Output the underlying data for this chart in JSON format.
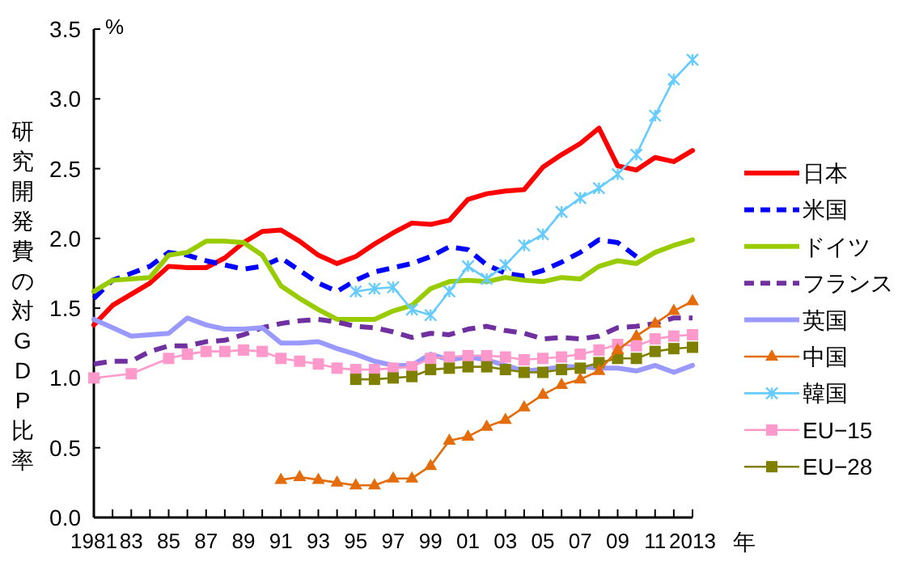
{
  "chart_data": {
    "type": "line",
    "ylabel": "研究開発費の対GDP比率",
    "xlabel": "年",
    "annotations": [
      "%"
    ],
    "xlim": [
      1981,
      2013
    ],
    "ylim": [
      0,
      3.5
    ],
    "yticks": [
      {
        "value": 0,
        "label": "0.0"
      },
      {
        "value": 0.5,
        "label": "0.5"
      },
      {
        "value": 1,
        "label": "1.0"
      },
      {
        "value": 1.5,
        "label": "1.5"
      },
      {
        "value": 2,
        "label": "2.0"
      },
      {
        "value": 2.5,
        "label": "2.5"
      },
      {
        "value": 3,
        "label": "3.0"
      },
      {
        "value": 3.5,
        "label": "3.5"
      }
    ],
    "xticks": [
      {
        "value": 1981,
        "label": "1981"
      },
      {
        "value": 1982,
        "label": null
      },
      {
        "value": 1983,
        "label": "83"
      },
      {
        "value": 1984,
        "label": null
      },
      {
        "value": 1985,
        "label": "85"
      },
      {
        "value": 1986,
        "label": null
      },
      {
        "value": 1987,
        "label": "87"
      },
      {
        "value": 1988,
        "label": null
      },
      {
        "value": 1989,
        "label": "89"
      },
      {
        "value": 1990,
        "label": null
      },
      {
        "value": 1991,
        "label": "91"
      },
      {
        "value": 1992,
        "label": null
      },
      {
        "value": 1993,
        "label": "93"
      },
      {
        "value": 1994,
        "label": null
      },
      {
        "value": 1995,
        "label": "95"
      },
      {
        "value": 1996,
        "label": null
      },
      {
        "value": 1997,
        "label": "97"
      },
      {
        "value": 1998,
        "label": null
      },
      {
        "value": 1999,
        "label": "99"
      },
      {
        "value": 2000,
        "label": null
      },
      {
        "value": 2001,
        "label": "01"
      },
      {
        "value": 2002,
        "label": null
      },
      {
        "value": 2003,
        "label": "03"
      },
      {
        "value": 2004,
        "label": null
      },
      {
        "value": 2005,
        "label": "05"
      },
      {
        "value": 2006,
        "label": null
      },
      {
        "value": 2007,
        "label": "07"
      },
      {
        "value": 2008,
        "label": null
      },
      {
        "value": 2009,
        "label": "09"
      },
      {
        "value": 2010,
        "label": null
      },
      {
        "value": 2011,
        "label": "11"
      },
      {
        "value": 2012,
        "label": null
      },
      {
        "value": 2013,
        "label": "2013"
      }
    ],
    "grid": false,
    "legend": "right",
    "series": [
      {
        "name": "日本",
        "color": "#ff0000",
        "line_style": "solid",
        "marker": "none",
        "x": [
          1981,
          1982,
          1983,
          1984,
          1985,
          1986,
          1987,
          1988,
          1989,
          1990,
          1991,
          1992,
          1993,
          1994,
          1995,
          1996,
          1997,
          1998,
          1999,
          2000,
          2001,
          2002,
          2003,
          2004,
          2005,
          2006,
          2007,
          2008,
          2009,
          2010,
          2011,
          2012,
          2013
        ],
        "values": [
          1.38,
          1.52,
          1.6,
          1.68,
          1.8,
          1.79,
          1.79,
          1.86,
          1.97,
          2.05,
          2.06,
          1.98,
          1.88,
          1.82,
          1.87,
          1.96,
          2.04,
          2.11,
          2.1,
          2.13,
          2.28,
          2.32,
          2.34,
          2.35,
          2.51,
          2.6,
          2.68,
          2.79,
          2.52,
          2.49,
          2.58,
          2.55,
          2.63
        ]
      },
      {
        "name": "米国",
        "color": "#0000ff",
        "line_style": "dashed",
        "marker": "none",
        "x": [
          1981,
          1982,
          1983,
          1984,
          1985,
          1986,
          1987,
          1988,
          1989,
          1990,
          1991,
          1992,
          1993,
          1994,
          1995,
          1996,
          1997,
          1998,
          1999,
          2000,
          2001,
          2002,
          2003,
          2004,
          2005,
          2006,
          2007,
          2008,
          2009,
          2010
        ],
        "values": [
          1.57,
          1.7,
          1.75,
          1.8,
          1.9,
          1.88,
          1.84,
          1.81,
          1.78,
          1.8,
          1.86,
          1.77,
          1.68,
          1.62,
          1.7,
          1.76,
          1.79,
          1.82,
          1.87,
          1.94,
          1.92,
          1.81,
          1.75,
          1.73,
          1.77,
          1.83,
          1.9,
          1.99,
          1.97,
          1.87
        ]
      },
      {
        "name": "ドイツ",
        "color": "#99cc00",
        "line_style": "solid",
        "marker": "none",
        "x": [
          1981,
          1982,
          1983,
          1984,
          1985,
          1986,
          1987,
          1988,
          1989,
          1990,
          1991,
          1992,
          1993,
          1994,
          1995,
          1996,
          1997,
          1998,
          1999,
          2000,
          2001,
          2002,
          2003,
          2004,
          2005,
          2006,
          2007,
          2008,
          2009,
          2010,
          2011,
          2012,
          2013
        ],
        "values": [
          1.62,
          1.7,
          1.71,
          1.72,
          1.88,
          1.9,
          1.98,
          1.98,
          1.97,
          1.88,
          1.66,
          1.57,
          1.49,
          1.42,
          1.42,
          1.42,
          1.48,
          1.52,
          1.64,
          1.69,
          1.7,
          1.69,
          1.72,
          1.7,
          1.69,
          1.72,
          1.71,
          1.8,
          1.84,
          1.82,
          1.9,
          1.95,
          1.99
        ]
      },
      {
        "name": "フランス",
        "color": "#7030a0",
        "line_style": "dashed",
        "marker": "none",
        "x": [
          1981,
          1982,
          1983,
          1984,
          1985,
          1986,
          1987,
          1988,
          1989,
          1990,
          1991,
          1992,
          1993,
          1994,
          1995,
          1996,
          1997,
          1998,
          1999,
          2000,
          2001,
          2002,
          2003,
          2004,
          2005,
          2006,
          2007,
          2008,
          2009,
          2010,
          2011,
          2012,
          2013
        ],
        "values": [
          1.1,
          1.12,
          1.12,
          1.19,
          1.23,
          1.23,
          1.26,
          1.27,
          1.31,
          1.36,
          1.39,
          1.41,
          1.42,
          1.4,
          1.37,
          1.36,
          1.33,
          1.29,
          1.32,
          1.31,
          1.35,
          1.37,
          1.34,
          1.32,
          1.28,
          1.29,
          1.28,
          1.3,
          1.36,
          1.37,
          1.39,
          1.43,
          1.43
        ]
      },
      {
        "name": "英国",
        "color": "#9999ff",
        "line_style": "solid",
        "marker": "none",
        "x": [
          1981,
          1982,
          1983,
          1984,
          1985,
          1986,
          1987,
          1988,
          1989,
          1990,
          1991,
          1992,
          1993,
          1994,
          1995,
          1996,
          1997,
          1998,
          1999,
          2000,
          2001,
          2002,
          2003,
          2004,
          2005,
          2006,
          2007,
          2008,
          2009,
          2010,
          2011,
          2012,
          2013
        ],
        "values": [
          1.42,
          1.36,
          1.3,
          1.31,
          1.32,
          1.43,
          1.38,
          1.35,
          1.35,
          1.36,
          1.25,
          1.25,
          1.26,
          1.21,
          1.17,
          1.12,
          1.09,
          1.09,
          1.17,
          1.13,
          1.15,
          1.13,
          1.09,
          1.05,
          1.06,
          1.08,
          1.08,
          1.07,
          1.07,
          1.05,
          1.09,
          1.04,
          1.09
        ]
      },
      {
        "name": "中国",
        "color": "#e46c0a",
        "line_style": "solid",
        "marker": "triangle",
        "x": [
          1991,
          1992,
          1993,
          1994,
          1995,
          1996,
          1997,
          1998,
          1999,
          2000,
          2001,
          2002,
          2003,
          2004,
          2005,
          2006,
          2007,
          2008,
          2009,
          2010,
          2011,
          2012,
          2013
        ],
        "values": [
          0.27,
          0.29,
          0.27,
          0.25,
          0.23,
          0.23,
          0.28,
          0.28,
          0.37,
          0.55,
          0.58,
          0.65,
          0.7,
          0.79,
          0.88,
          0.95,
          0.99,
          1.05,
          1.2,
          1.3,
          1.39,
          1.48,
          1.55
        ]
      },
      {
        "name": "韓国",
        "color": "#66ccff",
        "line_style": "solid",
        "marker": "cross",
        "x": [
          1995,
          1996,
          1997,
          1998,
          1999,
          2000,
          2001,
          2002,
          2003,
          2004,
          2005,
          2006,
          2007,
          2008,
          2009,
          2010,
          2011,
          2012,
          2013
        ],
        "values": [
          1.62,
          1.64,
          1.65,
          1.49,
          1.45,
          1.62,
          1.8,
          1.71,
          1.81,
          1.95,
          2.03,
          2.19,
          2.29,
          2.36,
          2.46,
          2.6,
          2.88,
          3.14,
          3.28
        ]
      },
      {
        "name": "EU−15",
        "color": "#ff99cc",
        "line_style": "solid",
        "marker": "square",
        "x": [
          1981,
          1983,
          1985,
          1986,
          1987,
          1988,
          1989,
          1990,
          1991,
          1992,
          1993,
          1994,
          1995,
          1996,
          1997,
          1998,
          1999,
          2000,
          2001,
          2002,
          2003,
          2004,
          2005,
          2006,
          2007,
          2008,
          2009,
          2010,
          2011,
          2012,
          2013
        ],
        "values": [
          1.0,
          1.03,
          1.14,
          1.17,
          1.19,
          1.19,
          1.2,
          1.19,
          1.14,
          1.12,
          1.1,
          1.07,
          1.06,
          1.06,
          1.07,
          1.08,
          1.14,
          1.15,
          1.16,
          1.16,
          1.15,
          1.13,
          1.14,
          1.15,
          1.17,
          1.2,
          1.24,
          1.23,
          1.28,
          1.3,
          1.31
        ]
      },
      {
        "name": "EU−28",
        "color": "#808000",
        "line_style": "solid",
        "marker": "square",
        "x": [
          1995,
          1996,
          1997,
          1998,
          1999,
          2000,
          2001,
          2002,
          2003,
          2004,
          2005,
          2006,
          2007,
          2008,
          2009,
          2010,
          2011,
          2012,
          2013
        ],
        "values": [
          0.99,
          0.99,
          1.0,
          1.01,
          1.06,
          1.07,
          1.08,
          1.08,
          1.06,
          1.04,
          1.04,
          1.06,
          1.07,
          1.11,
          1.14,
          1.14,
          1.19,
          1.21,
          1.22
        ]
      }
    ]
  }
}
